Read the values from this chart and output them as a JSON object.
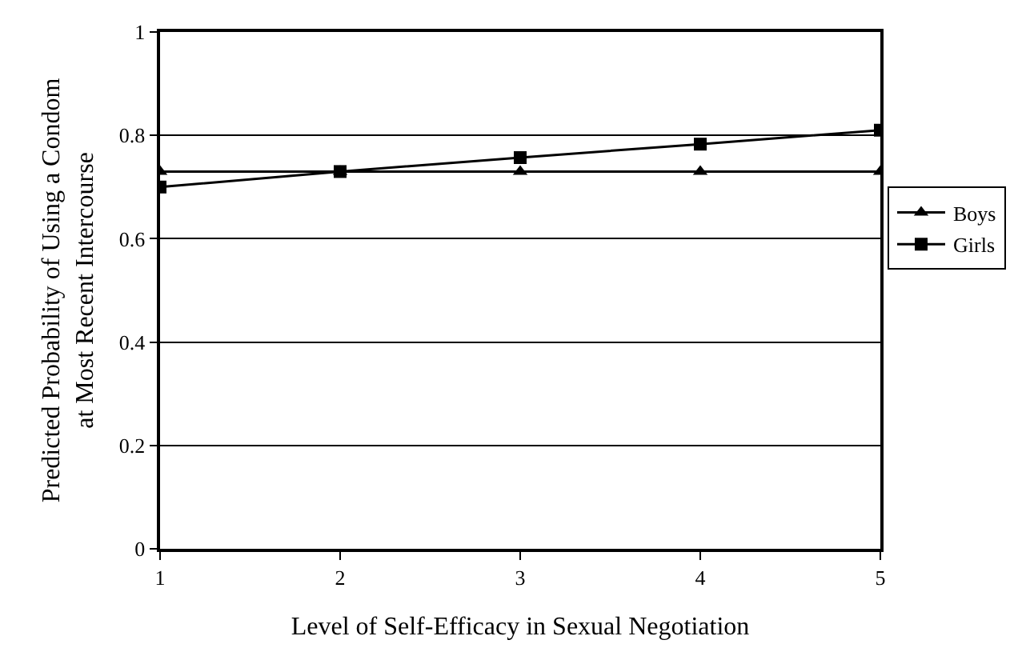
{
  "chart_data": {
    "type": "line",
    "xlabel": "Level of Self-Efficacy in Sexual Negotiation",
    "ylabel": "Predicted Probability of Using a Condom\nat Most Recent Intercourse",
    "x": [
      1,
      2,
      3,
      4,
      5
    ],
    "series": [
      {
        "name": "Boys",
        "color": "#000000",
        "marker": "triangle",
        "values": [
          0.73,
          0.73,
          0.73,
          0.73,
          0.73
        ]
      },
      {
        "name": "Girls",
        "color": "#000000",
        "marker": "square",
        "values": [
          0.7,
          0.73,
          0.757,
          0.783,
          0.81
        ]
      }
    ],
    "xlim": [
      1,
      5
    ],
    "xticks": [
      1,
      2,
      3,
      4,
      5
    ],
    "ylim": [
      0,
      1
    ],
    "yticks": [
      0,
      0.2,
      0.4,
      0.6,
      0.8,
      1
    ],
    "grid": "y",
    "legend": "right",
    "line_style": "solid"
  }
}
